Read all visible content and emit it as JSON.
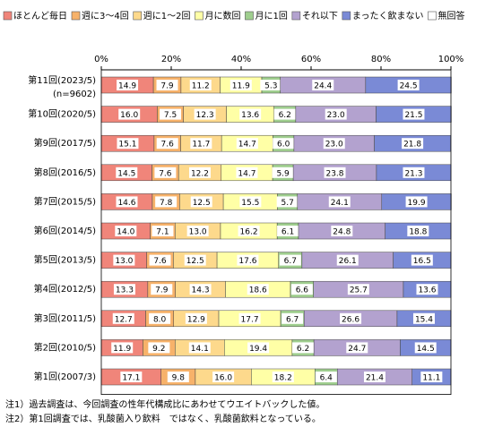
{
  "chart_data": {
    "type": "stacked-bar-horizontal",
    "categories": [
      "第11回(2023/5)",
      "第10回(2020/5)",
      "第9回(2017/5)",
      "第8回(2016/5)",
      "第7回(2015/5)",
      "第6回(2014/5)",
      "第5回(2013/5)",
      "第4回(2012/5)",
      "第3回(2011/5)",
      "第2回(2010/5)",
      "第1回(2007/3)"
    ],
    "sample_size_label": "(n=9602)",
    "xlim": [
      0,
      100
    ],
    "xticks": [
      {
        "value": 0,
        "label": "0%"
      },
      {
        "value": 20,
        "label": "20%"
      },
      {
        "value": 40,
        "label": "40%"
      },
      {
        "value": 60,
        "label": "60%"
      },
      {
        "value": 80,
        "label": "80%"
      },
      {
        "value": 100,
        "label": "100%"
      }
    ],
    "legend": "top",
    "series": [
      {
        "name": "ほとんど毎日",
        "color": "#f0857a",
        "values": [
          14.9,
          16.0,
          15.1,
          14.5,
          14.6,
          14.0,
          13.0,
          13.3,
          12.7,
          11.9,
          17.1
        ],
        "value_labels": [
          "14.9",
          "16.0",
          "15.1",
          "14.5",
          "14.6",
          "14.0",
          "13.0",
          "13.3",
          "12.7",
          "11.9",
          "17.1"
        ]
      },
      {
        "name": "週に3～4回",
        "color": "#f7b26a",
        "values": [
          7.9,
          7.5,
          7.6,
          7.6,
          7.8,
          7.1,
          7.6,
          7.9,
          8.0,
          9.2,
          9.8
        ],
        "value_labels": [
          "7.9",
          "7.5",
          "7.6",
          "7.6",
          "7.8",
          "7.1",
          "7.6",
          "7.9",
          "8.0",
          "9.2",
          "9.8"
        ]
      },
      {
        "name": "週に1～2回",
        "color": "#fdd98c",
        "values": [
          11.2,
          12.3,
          11.7,
          12.2,
          12.5,
          13.0,
          12.5,
          14.3,
          12.9,
          14.1,
          16.0
        ],
        "value_labels": [
          "11.2",
          "12.3",
          "11.7",
          "12.2",
          "12.5",
          "13.0",
          "12.5",
          "14.3",
          "12.9",
          "14.1",
          "16.0"
        ]
      },
      {
        "name": "月に数回",
        "color": "#ffffa6",
        "values": [
          11.9,
          13.6,
          14.7,
          14.7,
          15.5,
          16.2,
          17.6,
          18.6,
          17.7,
          19.4,
          18.2
        ],
        "value_labels": [
          "11.9",
          "13.6",
          "14.7",
          "14.7",
          "15.5",
          "16.2",
          "17.6",
          "18.6",
          "17.7",
          "19.4",
          "18.2"
        ]
      },
      {
        "name": "月に1回",
        "color": "#9fce8e",
        "values": [
          5.3,
          6.2,
          6.0,
          5.9,
          5.7,
          6.1,
          6.7,
          6.6,
          6.7,
          6.2,
          6.4
        ],
        "value_labels": [
          "5.3",
          "6.2",
          "6.0",
          "5.9",
          "5.7",
          "6.1",
          "6.7",
          "6.6",
          "6.7",
          "6.2",
          "6.4"
        ]
      },
      {
        "name": "それ以下",
        "color": "#b3a2cf",
        "values": [
          24.4,
          23.0,
          23.0,
          23.8,
          24.1,
          24.8,
          26.1,
          25.7,
          26.6,
          24.7,
          21.4
        ],
        "value_labels": [
          "24.4",
          "23.0",
          "23.0",
          "23.8",
          "24.1",
          "24.8",
          "26.1",
          "25.7",
          "26.6",
          "24.7",
          "21.4"
        ]
      },
      {
        "name": "まったく飲まない",
        "color": "#7a8ad6",
        "values": [
          24.5,
          21.5,
          21.8,
          21.3,
          19.9,
          18.8,
          16.5,
          13.6,
          15.4,
          14.5,
          11.1
        ],
        "value_labels": [
          "24.5",
          "21.5",
          "21.8",
          "21.3",
          "19.9",
          "18.8",
          "16.5",
          "13.6",
          "15.4",
          "14.5",
          "11.1"
        ]
      },
      {
        "name": "無回答",
        "color": "#ffffff",
        "values": [
          0,
          0,
          0,
          0,
          0,
          0,
          0,
          0,
          0,
          0,
          0
        ]
      }
    ],
    "notes": [
      "注1）過去調査は、今回調査の性年代構成比にあわせてウエイトバックした値。",
      "注2）第1回調査では、乳酸菌入り飲料　ではなく、乳酸菌飲料となっている。"
    ]
  }
}
